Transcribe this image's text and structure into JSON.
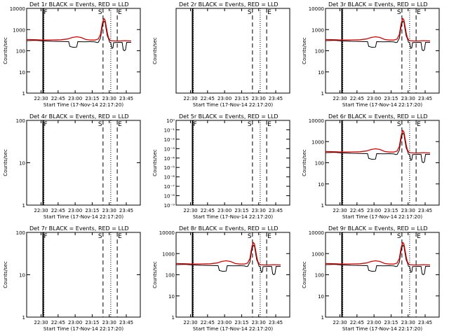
{
  "chart_data": [
    {
      "type": "line",
      "title": "Det 1r BLACK = Events, RED = LLD",
      "ylabel": "Counts/sec",
      "xlabel": "Start Time (17-Nov-14 22:17:20)",
      "yscale": "log",
      "ylim": [
        1,
        10000
      ],
      "yticks": [
        "1",
        "10",
        "100",
        "1000",
        "10000"
      ],
      "xticks": [
        "22:30",
        "22:45",
        "23:00",
        "23:15",
        "23:30",
        "23:45"
      ],
      "markers": {
        "f": "F",
        "s": "S",
        "e": "E"
      },
      "profile": "flare"
    },
    {
      "type": "line",
      "title": "Det 2r BLACK = Events, RED = LLD",
      "ylabel": "Counts/sec",
      "xlabel": "Start Time (17-Nov-14 22:17:20)",
      "yscale": "log",
      "ylim": [
        1,
        10
      ],
      "yticks": [],
      "xticks": [
        "22:30",
        "22:45",
        "23:00",
        "23:15",
        "23:30",
        "23:45"
      ],
      "markers": {
        "f": "",
        "s": "S",
        "e": "E"
      },
      "profile": "empty"
    },
    {
      "type": "line",
      "title": "Det 3r BLACK = Events, RED = LLD",
      "ylabel": "Counts/sec",
      "xlabel": "Start Time (17-Nov-14 22:17:20)",
      "yscale": "log",
      "ylim": [
        1,
        10000
      ],
      "yticks": [
        "1",
        "10",
        "100",
        "1000",
        "10000"
      ],
      "xticks": [
        "22:30",
        "22:45",
        "23:00",
        "23:15",
        "23:30",
        "23:45"
      ],
      "markers": {
        "f": "",
        "s": "S",
        "e": "E"
      },
      "profile": "flare"
    },
    {
      "type": "line",
      "title": "Det 4r BLACK = Events, RED = LLD",
      "ylabel": "Counts/sec",
      "xlabel": "Start Time (17-Nov-14 22:17:20)",
      "yscale": "log",
      "ylim": [
        1,
        100
      ],
      "yticks": [
        "1",
        "10",
        "100"
      ],
      "xticks": [
        "22:30",
        "22:45",
        "23:00",
        "23:15",
        "23:30",
        "23:45"
      ],
      "markers": {
        "f": "F",
        "s": "S",
        "e": "E"
      },
      "profile": "empty"
    },
    {
      "type": "line",
      "title": "Det 5r BLACK = Events, RED = LLD",
      "ylabel": "Counts/sec",
      "xlabel": "Start Time (17-Nov-14 22:17:20)",
      "yscale": "log",
      "ylim": [
        1,
        1e-09
      ],
      "yticks": [
        "10⁻⁹",
        "10⁻⁸",
        "10⁻⁷",
        "10⁻⁶",
        "10⁻⁵",
        "10⁻⁴",
        "10⁻³",
        "10⁻²",
        "10⁻¹",
        "10⁰"
      ],
      "xticks": [
        "22:30",
        "22:45",
        "23:00",
        "23:15",
        "23:30",
        "23:45"
      ],
      "markers": {
        "f": "F",
        "s": "S",
        "e": "E"
      },
      "profile": "empty"
    },
    {
      "type": "line",
      "title": "Det 6r BLACK = Events, RED = LLD",
      "ylabel": "Counts/sec",
      "xlabel": "Start Time (17-Nov-14 22:17:20)",
      "yscale": "log",
      "ylim": [
        1,
        10000
      ],
      "yticks": [
        "1",
        "10",
        "100",
        "1000",
        "10000"
      ],
      "xticks": [
        "22:30",
        "22:45",
        "23:00",
        "23:15",
        "23:30",
        "23:45"
      ],
      "markers": {
        "f": "",
        "s": "S",
        "e": "E"
      },
      "profile": "flare"
    },
    {
      "type": "line",
      "title": "Det 7r BLACK = Events, RED = LLD",
      "ylabel": "Counts/sec",
      "xlabel": "Start Time (17-Nov-14 22:17:20)",
      "yscale": "log",
      "ylim": [
        1,
        100
      ],
      "yticks": [
        "1",
        "10",
        "100"
      ],
      "xticks": [
        "22:30",
        "22:45",
        "23:00",
        "23:15",
        "23:30",
        "23:45"
      ],
      "markers": {
        "f": "F",
        "s": "S",
        "e": "E"
      },
      "profile": "empty"
    },
    {
      "type": "line",
      "title": "Det 8r BLACK = Events, RED = LLD",
      "ylabel": "Counts/sec",
      "xlabel": "Start Time (17-Nov-14 22:17:20)",
      "yscale": "log",
      "ylim": [
        1,
        10000
      ],
      "yticks": [
        "1",
        "10",
        "100",
        "1000",
        "10000"
      ],
      "xticks": [
        "22:30",
        "22:45",
        "23:00",
        "23:15",
        "23:30",
        "23:45"
      ],
      "markers": {
        "f": "",
        "s": "S",
        "e": "E"
      },
      "profile": "flare"
    },
    {
      "type": "line",
      "title": "Det 9r BLACK = Events, RED = LLD",
      "ylabel": "Counts/sec",
      "xlabel": "Start Time (17-Nov-14 22:17:20)",
      "yscale": "log",
      "ylim": [
        1,
        10000
      ],
      "yticks": [
        "1",
        "10",
        "100",
        "1000",
        "10000"
      ],
      "xticks": [
        "22:30",
        "22:45",
        "23:00",
        "23:15",
        "23:30",
        "23:45"
      ],
      "markers": {
        "f": "",
        "s": "S",
        "e": "E"
      },
      "profile": "flare"
    }
  ],
  "series_colors": {
    "events": "#000000",
    "lld": "#e00000"
  }
}
